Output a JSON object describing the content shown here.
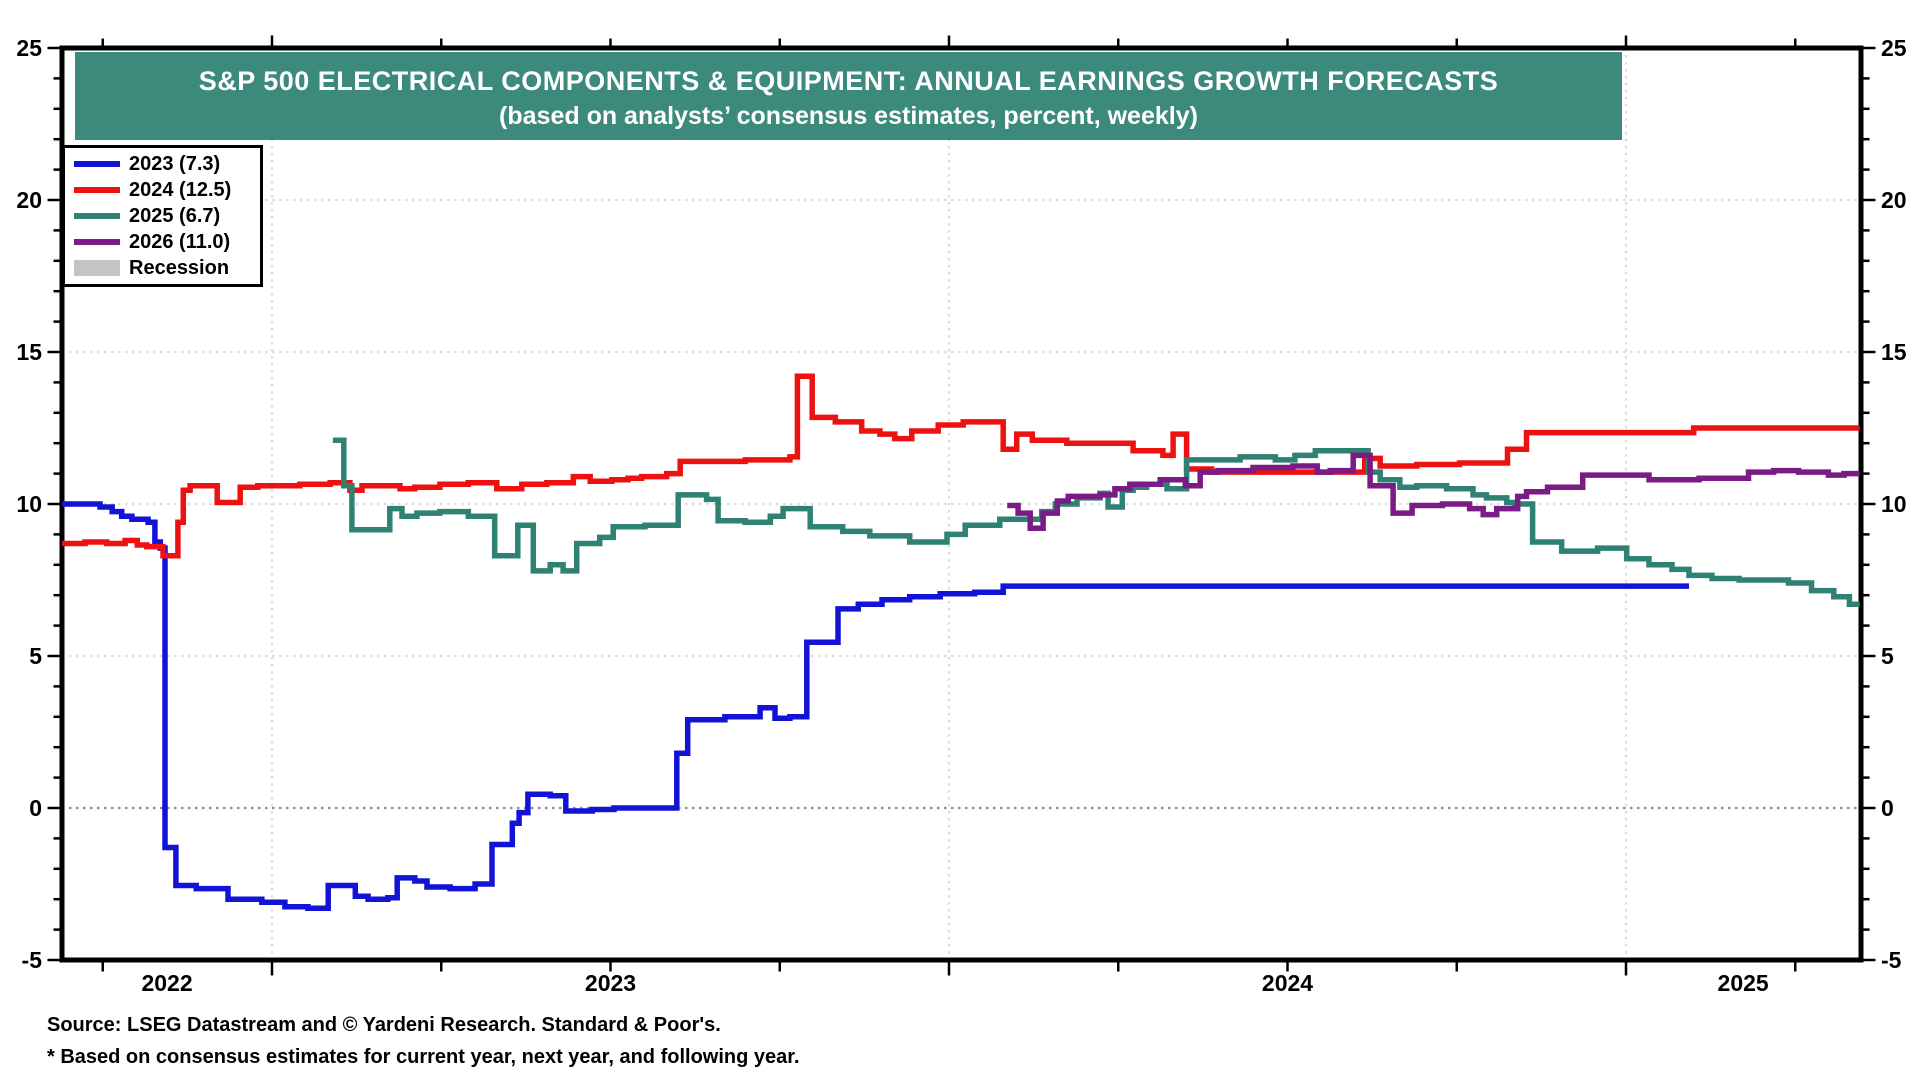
{
  "title_banner": {
    "line1": "S&P 500 ELECTRICAL COMPONENTS & EQUIPMENT: ANNUAL EARNINGS GROWTH FORECASTS",
    "line2": "(based on analysts’ consensus estimates, percent, weekly)",
    "bg_color": "#3c8a7b",
    "text_color": "#ffffff"
  },
  "footer": {
    "line1": "Source: LSEG Datastream and © Yardeni Research. Standard & Poor's.",
    "line2": "* Based on consensus estimates for current year, next year, and following year."
  },
  "chart_data": {
    "type": "line",
    "title": "S&P 500 ELECTRICAL COMPONENTS & EQUIPMENT: ANNUAL EARNINGS GROWTH FORECASTS",
    "subtitle": "(based on analysts’ consensus estimates, percent, weekly)",
    "units": "percent",
    "frequency": "weekly",
    "ylim": [
      -5,
      25
    ],
    "y_major_ticks": [
      -5,
      0,
      5,
      10,
      15,
      20,
      25
    ],
    "y_minor_step": 1,
    "x_domain": [
      2022.69,
      2025.345
    ],
    "x_quarter_tick_step": 0.25,
    "year_gridlines": [
      2023,
      2024,
      2025
    ],
    "x_labels": [
      {
        "text": "2022",
        "t": 2022.845
      },
      {
        "text": "2023",
        "t": 2023.5
      },
      {
        "text": "2024",
        "t": 2024.5
      },
      {
        "text": "2025",
        "t": 2025.173
      }
    ],
    "grid_color": "#dcdcdc",
    "zero_line_color": "#8c8c8c",
    "frame_color": "#000000",
    "legend_extra": {
      "label": "Recession",
      "color": "#c4c4c4",
      "type": "box"
    },
    "series": [
      {
        "key": "2023",
        "label": "2023 (7.3)",
        "color": "#1313d6",
        "final_value": 7.3,
        "end_t": 2025.093,
        "points": [
          [
            2022.69,
            10.0
          ],
          [
            2022.746,
            9.9
          ],
          [
            2022.764,
            9.75
          ],
          [
            2022.778,
            9.6
          ],
          [
            2022.793,
            9.5
          ],
          [
            2022.817,
            9.4
          ],
          [
            2022.827,
            8.75
          ],
          [
            2022.835,
            8.55
          ],
          [
            2022.842,
            -1.3
          ],
          [
            2022.858,
            -2.55
          ],
          [
            2022.888,
            -2.65
          ],
          [
            2022.935,
            -3.0
          ],
          [
            2022.985,
            -3.1
          ],
          [
            2023.019,
            -3.25
          ],
          [
            2023.053,
            -3.3
          ],
          [
            2023.083,
            -2.55
          ],
          [
            2023.123,
            -2.9
          ],
          [
            2023.142,
            -3.0
          ],
          [
            2023.171,
            -2.95
          ],
          [
            2023.185,
            -2.3
          ],
          [
            2023.211,
            -2.4
          ],
          [
            2023.229,
            -2.6
          ],
          [
            2023.263,
            -2.65
          ],
          [
            2023.3,
            -2.5
          ],
          [
            2023.325,
            -1.2
          ],
          [
            2023.355,
            -0.5
          ],
          [
            2023.365,
            -0.15
          ],
          [
            2023.378,
            0.45
          ],
          [
            2023.411,
            0.4
          ],
          [
            2023.434,
            -0.1
          ],
          [
            2023.473,
            -0.05
          ],
          [
            2023.505,
            0.0
          ],
          [
            2023.598,
            1.8
          ],
          [
            2023.614,
            2.9
          ],
          [
            2023.669,
            3.0
          ],
          [
            2023.721,
            3.3
          ],
          [
            2023.743,
            2.95
          ],
          [
            2023.765,
            3.0
          ],
          [
            2023.79,
            5.45
          ],
          [
            2023.836,
            6.55
          ],
          [
            2023.866,
            6.7
          ],
          [
            2023.901,
            6.85
          ],
          [
            2023.942,
            6.95
          ],
          [
            2023.987,
            7.05
          ],
          [
            2024.038,
            7.1
          ],
          [
            2024.08,
            7.3
          ]
        ]
      },
      {
        "key": "2024",
        "label": "2024 (12.5)",
        "color": "#ed1111",
        "final_value": 12.5,
        "end_t": 2025.345,
        "points": [
          [
            2022.69,
            8.7
          ],
          [
            2022.724,
            8.75
          ],
          [
            2022.756,
            8.7
          ],
          [
            2022.783,
            8.8
          ],
          [
            2022.801,
            8.65
          ],
          [
            2022.815,
            8.6
          ],
          [
            2022.839,
            8.3
          ],
          [
            2022.861,
            9.4
          ],
          [
            2022.869,
            10.45
          ],
          [
            2022.879,
            10.6
          ],
          [
            2022.919,
            10.05
          ],
          [
            2022.953,
            10.55
          ],
          [
            2022.979,
            10.6
          ],
          [
            2023.041,
            10.65
          ],
          [
            2023.086,
            10.7
          ],
          [
            2023.115,
            10.45
          ],
          [
            2023.133,
            10.6
          ],
          [
            2023.189,
            10.5
          ],
          [
            2023.211,
            10.55
          ],
          [
            2023.248,
            10.65
          ],
          [
            2023.29,
            10.7
          ],
          [
            2023.332,
            10.5
          ],
          [
            2023.369,
            10.65
          ],
          [
            2023.406,
            10.7
          ],
          [
            2023.445,
            10.9
          ],
          [
            2023.47,
            10.75
          ],
          [
            2023.502,
            10.8
          ],
          [
            2023.526,
            10.85
          ],
          [
            2023.546,
            10.9
          ],
          [
            2023.583,
            11.0
          ],
          [
            2023.603,
            11.4
          ],
          [
            2023.699,
            11.45
          ],
          [
            2023.765,
            11.55
          ],
          [
            2023.776,
            14.2
          ],
          [
            2023.798,
            12.85
          ],
          [
            2023.832,
            12.7
          ],
          [
            2023.871,
            12.4
          ],
          [
            2023.898,
            12.3
          ],
          [
            2023.92,
            12.15
          ],
          [
            2023.945,
            12.4
          ],
          [
            2023.984,
            12.6
          ],
          [
            2024.021,
            12.7
          ],
          [
            2024.08,
            11.8
          ],
          [
            2024.1,
            12.3
          ],
          [
            2024.123,
            12.1
          ],
          [
            2024.174,
            12.0
          ],
          [
            2024.272,
            11.75
          ],
          [
            2024.316,
            11.6
          ],
          [
            2024.331,
            12.3
          ],
          [
            2024.351,
            11.15
          ],
          [
            2024.388,
            11.05
          ],
          [
            2024.614,
            11.5
          ],
          [
            2024.637,
            11.25
          ],
          [
            2024.691,
            11.3
          ],
          [
            2024.754,
            11.35
          ],
          [
            2024.825,
            11.8
          ],
          [
            2024.853,
            12.35
          ],
          [
            2025.1,
            12.5
          ]
        ]
      },
      {
        "key": "2025",
        "label": "2025 (6.7)",
        "color": "#2e8173",
        "final_value": 6.7,
        "end_t": 2025.345,
        "points": [
          [
            2023.09,
            12.1
          ],
          [
            2023.106,
            10.6
          ],
          [
            2023.118,
            9.15
          ],
          [
            2023.174,
            9.85
          ],
          [
            2023.192,
            9.6
          ],
          [
            2023.214,
            9.7
          ],
          [
            2023.248,
            9.75
          ],
          [
            2023.29,
            9.6
          ],
          [
            2023.329,
            8.3
          ],
          [
            2023.363,
            9.3
          ],
          [
            2023.386,
            7.8
          ],
          [
            2023.411,
            8.0
          ],
          [
            2023.43,
            7.8
          ],
          [
            2023.45,
            8.7
          ],
          [
            2023.484,
            8.9
          ],
          [
            2023.504,
            9.25
          ],
          [
            2023.551,
            9.3
          ],
          [
            2023.6,
            10.3
          ],
          [
            2023.642,
            10.15
          ],
          [
            2023.659,
            9.45
          ],
          [
            2023.699,
            9.4
          ],
          [
            2023.736,
            9.6
          ],
          [
            2023.755,
            9.85
          ],
          [
            2023.795,
            9.25
          ],
          [
            2023.843,
            9.1
          ],
          [
            2023.883,
            8.95
          ],
          [
            2023.942,
            8.75
          ],
          [
            2023.997,
            9.0
          ],
          [
            2024.024,
            9.3
          ],
          [
            2024.075,
            9.5
          ],
          [
            2024.137,
            9.75
          ],
          [
            2024.157,
            10.0
          ],
          [
            2024.189,
            10.2
          ],
          [
            2024.223,
            10.35
          ],
          [
            2024.235,
            9.9
          ],
          [
            2024.256,
            10.45
          ],
          [
            2024.272,
            10.55
          ],
          [
            2024.292,
            10.65
          ],
          [
            2024.322,
            10.5
          ],
          [
            2024.351,
            11.45
          ],
          [
            2024.43,
            11.55
          ],
          [
            2024.482,
            11.45
          ],
          [
            2024.511,
            11.6
          ],
          [
            2024.541,
            11.75
          ],
          [
            2024.619,
            11.05
          ],
          [
            2024.637,
            10.8
          ],
          [
            2024.666,
            10.55
          ],
          [
            2024.691,
            10.6
          ],
          [
            2024.735,
            10.5
          ],
          [
            2024.774,
            10.3
          ],
          [
            2024.794,
            10.2
          ],
          [
            2024.824,
            10.05
          ],
          [
            2024.835,
            10.0
          ],
          [
            2024.862,
            8.75
          ],
          [
            2024.905,
            8.45
          ],
          [
            2024.958,
            8.55
          ],
          [
            2025.001,
            8.2
          ],
          [
            2025.034,
            8.0
          ],
          [
            2025.068,
            7.85
          ],
          [
            2025.093,
            7.65
          ],
          [
            2025.127,
            7.55
          ],
          [
            2025.167,
            7.5
          ],
          [
            2025.24,
            7.4
          ],
          [
            2025.274,
            7.15
          ],
          [
            2025.307,
            6.95
          ],
          [
            2025.33,
            6.7
          ]
        ]
      },
      {
        "key": "2026",
        "label": "2026 (11.0)",
        "color": "#7b1b85",
        "final_value": 11.0,
        "end_t": 2025.345,
        "points": [
          [
            2024.086,
            9.95
          ],
          [
            2024.102,
            9.7
          ],
          [
            2024.12,
            9.2
          ],
          [
            2024.139,
            9.7
          ],
          [
            2024.16,
            10.1
          ],
          [
            2024.176,
            10.25
          ],
          [
            2024.223,
            10.3
          ],
          [
            2024.245,
            10.5
          ],
          [
            2024.267,
            10.65
          ],
          [
            2024.312,
            10.8
          ],
          [
            2024.349,
            10.6
          ],
          [
            2024.371,
            11.05
          ],
          [
            2024.397,
            11.1
          ],
          [
            2024.449,
            11.2
          ],
          [
            2024.508,
            11.25
          ],
          [
            2024.544,
            11.05
          ],
          [
            2024.563,
            11.1
          ],
          [
            2024.597,
            11.6
          ],
          [
            2024.622,
            10.6
          ],
          [
            2024.656,
            9.7
          ],
          [
            2024.684,
            9.95
          ],
          [
            2024.729,
            10.0
          ],
          [
            2024.769,
            9.85
          ],
          [
            2024.789,
            9.65
          ],
          [
            2024.809,
            9.85
          ],
          [
            2024.84,
            10.25
          ],
          [
            2024.853,
            10.4
          ],
          [
            2024.884,
            10.55
          ],
          [
            2024.936,
            10.95
          ],
          [
            2025.034,
            10.8
          ],
          [
            2025.108,
            10.85
          ],
          [
            2025.181,
            11.05
          ],
          [
            2025.218,
            11.1
          ],
          [
            2025.255,
            11.05
          ],
          [
            2025.299,
            10.95
          ],
          [
            2025.322,
            11.0
          ]
        ]
      }
    ]
  }
}
